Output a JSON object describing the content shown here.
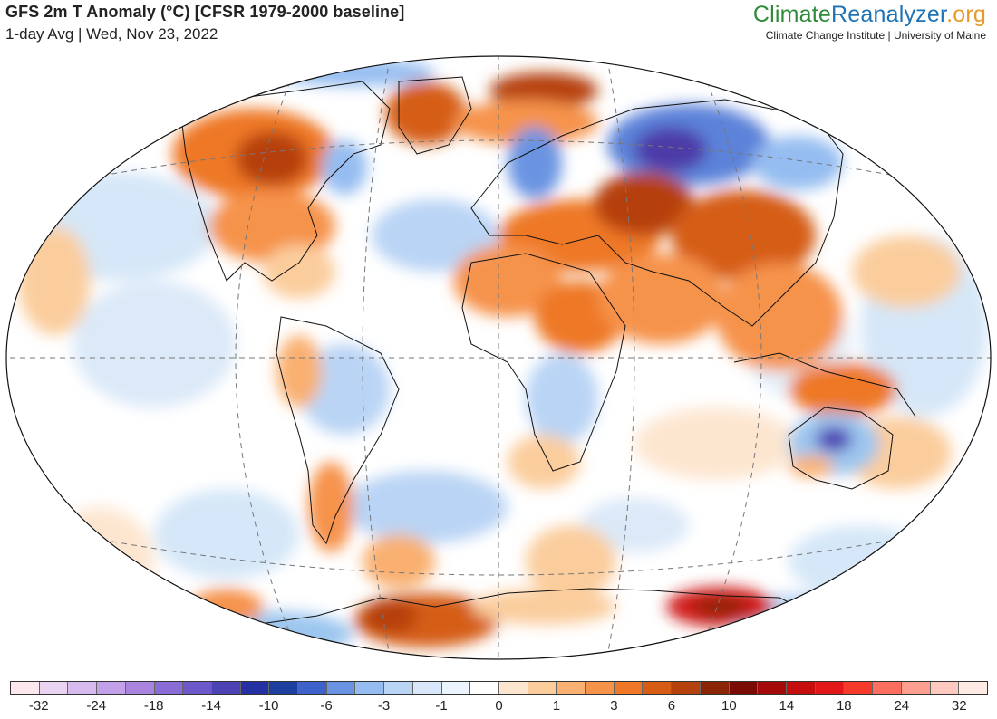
{
  "header": {
    "title": "GFS 2m T Anomaly (°C) [CFSR 1979-2000 baseline]",
    "subtitle": "1-day Avg | Wed, Nov 23, 2022",
    "brand_part1": "Climate",
    "brand_part2": "Reanalyzer",
    "brand_part3": ".org",
    "brand_sub": "Climate Change Institute | University of Maine"
  },
  "map": {
    "projection": "Winkel Tripel",
    "variable": "2m air temperature anomaly",
    "colors": {
      "ocean_neutral": "#ffffff",
      "light_warm": "#fcd7b4",
      "warm": "#f8a460",
      "strong_warm": "#e67324",
      "very_warm": "#b5461a",
      "extreme_warm": "#d21a1a",
      "light_cool": "#d5e7f8",
      "cool": "#9cc6ef",
      "strong_cool": "#5b82d9",
      "very_cool": "#4d3aa8"
    }
  },
  "colorbar": {
    "colors": [
      "#fde8ee",
      "#e9d3f1",
      "#d7baee",
      "#c2a0ea",
      "#a985e0",
      "#8a6cd6",
      "#6c58c8",
      "#4d42b3",
      "#2530a3",
      "#1d3fa0",
      "#3e62c9",
      "#6a94e2",
      "#95bdf1",
      "#b9d4f5",
      "#d8e8fa",
      "#ecf4fd",
      "#ffffff",
      "#fde6d0",
      "#fbcd9d",
      "#f9b071",
      "#f6934b",
      "#ee7827",
      "#d55d16",
      "#b6410d",
      "#8c2406",
      "#7a0a04",
      "#a50a0a",
      "#c70e0e",
      "#e21818",
      "#f53a2a",
      "#fb6e60",
      "#fd9e8f",
      "#fdc8bd",
      "#feeae5"
    ],
    "tick_labels": [
      "-32",
      "-24",
      "-18",
      "-14",
      "-10",
      "-6",
      "-3",
      "-1",
      "0",
      "1",
      "3",
      "6",
      "10",
      "14",
      "18",
      "24",
      "32"
    ]
  }
}
